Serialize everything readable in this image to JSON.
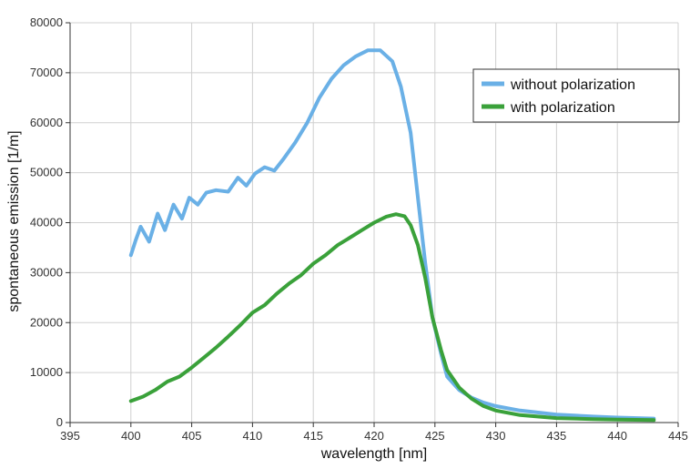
{
  "chart_data": {
    "type": "line",
    "xlabel": "wavelength [nm]",
    "ylabel": "spontaneous emission [1/m]",
    "xlim": [
      395,
      445
    ],
    "ylim": [
      0,
      80000
    ],
    "x_ticks": [
      395,
      400,
      405,
      410,
      415,
      420,
      425,
      430,
      435,
      440,
      445
    ],
    "y_ticks": [
      0,
      10000,
      20000,
      30000,
      40000,
      50000,
      60000,
      70000,
      80000
    ],
    "grid": true,
    "legend_position": "top-right",
    "series": [
      {
        "name": "without polarization",
        "color": "#6ab0e6",
        "x": [
          400.0,
          400.4,
          400.8,
          401.5,
          402.2,
          402.8,
          403.5,
          404.2,
          404.8,
          405.5,
          406.2,
          407.0,
          408.0,
          408.8,
          409.5,
          410.2,
          411.0,
          411.8,
          412.5,
          413.5,
          414.5,
          415.5,
          416.5,
          417.5,
          418.5,
          419.5,
          420.5,
          421.5,
          422.2,
          423.0,
          423.6,
          424.2,
          424.8,
          425.5,
          426.0,
          427.0,
          428.0,
          429.0,
          430.0,
          432.0,
          435.0,
          438.0,
          440.0,
          443.0
        ],
        "y": [
          33500,
          36500,
          39200,
          36200,
          41800,
          38500,
          43600,
          40800,
          45000,
          43600,
          46000,
          46500,
          46200,
          49000,
          47400,
          49800,
          51100,
          50400,
          52600,
          56000,
          60000,
          65000,
          68800,
          71500,
          73300,
          74500,
          74500,
          72300,
          67200,
          58000,
          45000,
          32000,
          21000,
          13800,
          9200,
          6500,
          5000,
          4000,
          3300,
          2400,
          1600,
          1200,
          1000,
          800
        ]
      },
      {
        "name": "with polarization",
        "color": "#3aa13a",
        "x": [
          400.0,
          401.0,
          402.0,
          403.0,
          404.0,
          405.0,
          406.0,
          407.0,
          408.0,
          409.0,
          410.0,
          411.0,
          412.0,
          413.0,
          414.0,
          415.0,
          416.0,
          417.0,
          418.0,
          419.0,
          420.0,
          421.0,
          421.8,
          422.5,
          423.0,
          423.6,
          424.2,
          424.8,
          425.5,
          426.0,
          427.0,
          428.0,
          429.0,
          430.0,
          432.0,
          435.0,
          438.0,
          440.0,
          443.0
        ],
        "y": [
          4300,
          5200,
          6500,
          8200,
          9200,
          11000,
          13000,
          15000,
          17200,
          19500,
          22000,
          23500,
          25800,
          27800,
          29500,
          31800,
          33500,
          35500,
          37000,
          38500,
          40000,
          41200,
          41700,
          41300,
          39500,
          35500,
          29000,
          21000,
          14500,
          10500,
          7000,
          4800,
          3300,
          2400,
          1500,
          900,
          700,
          600,
          500
        ]
      }
    ]
  }
}
